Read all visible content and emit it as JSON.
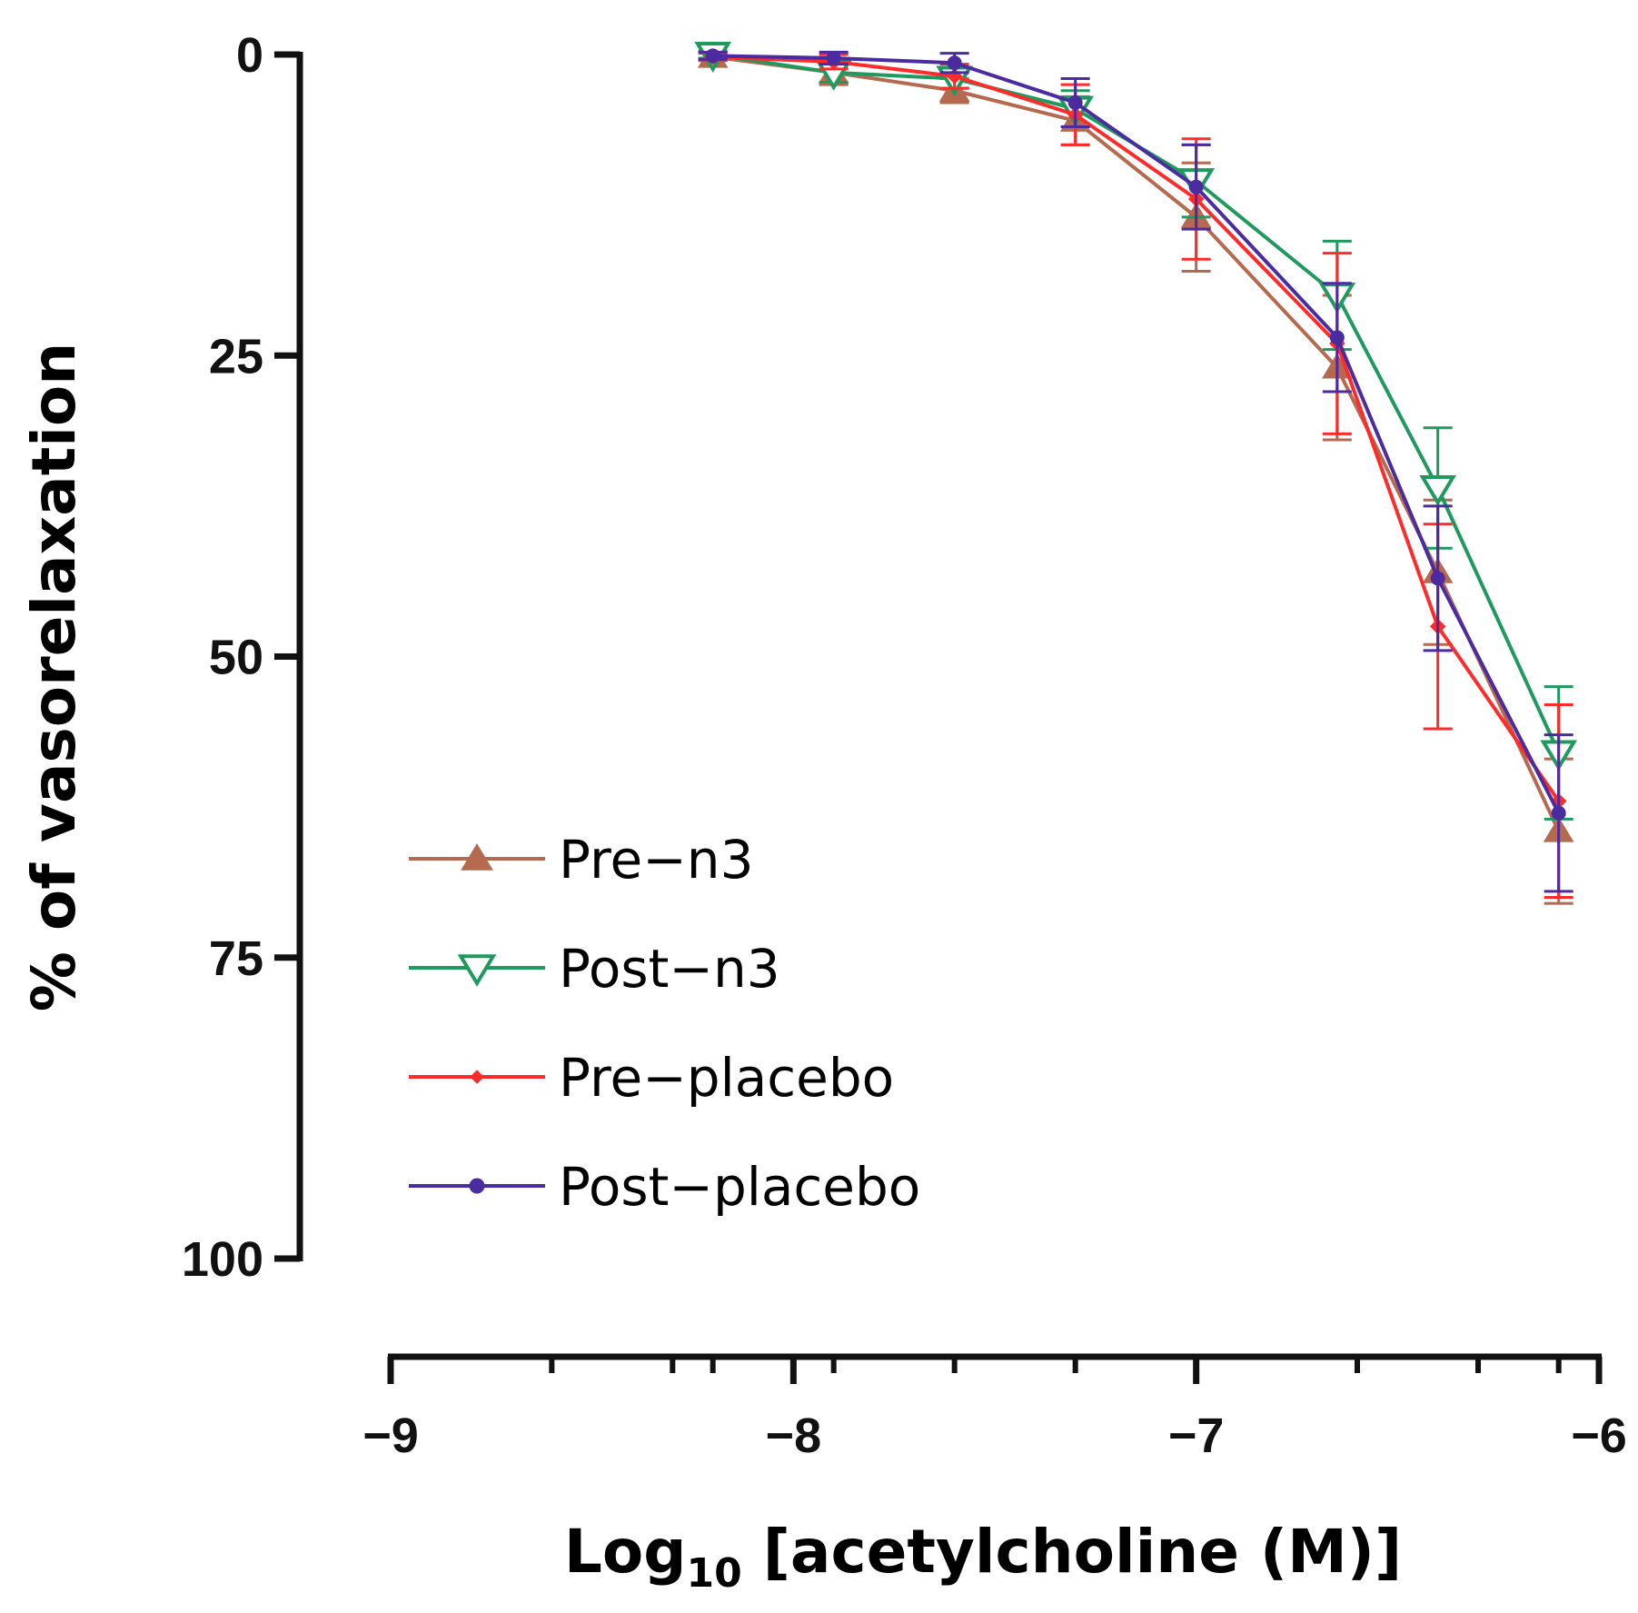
{
  "chart_data": {
    "type": "line",
    "title": "",
    "xlabel": {
      "prefix": "Log",
      "subscript": "10",
      "suffix": " [acetylcholine (M)]"
    },
    "ylabel": "% of vasorelaxation",
    "xlim": [
      -9,
      -6
    ],
    "ylim": [
      0,
      100
    ],
    "y_inverted": true,
    "grid": false,
    "legend_position": "bottom-left",
    "x_ticks": [
      -9,
      -8,
      -7,
      -6
    ],
    "x_tick_labels": [
      "−9",
      "−8",
      "−7",
      "−6"
    ],
    "x_minor_ticks": [
      -8.6,
      -8.3,
      -8.2,
      -7.9,
      -7.6,
      -7.3,
      -6.6,
      -6.3,
      -6.1
    ],
    "y_ticks": [
      0,
      25,
      50,
      75,
      100
    ],
    "y_tick_labels": [
      "0",
      "25",
      "50",
      "75",
      "100"
    ],
    "x": [
      -8.2,
      -7.9,
      -7.6,
      -7.3,
      -7.0,
      -6.65,
      -6.4,
      -6.1
    ],
    "series": [
      {
        "name": "Pre−n3",
        "marker": "triangle-up",
        "color": "#b5694f",
        "values": [
          0.2,
          1.5,
          3.0,
          5.5,
          13.5,
          26.0,
          43.0,
          64.5
        ],
        "errors": [
          0.3,
          1.0,
          1.0,
          2.0,
          4.5,
          6.0,
          6.0,
          6.0
        ]
      },
      {
        "name": "Post−n3",
        "marker": "triangle-down-open",
        "color": "#1e9a5e",
        "values": [
          0.0,
          1.5,
          2.0,
          4.5,
          10.5,
          20.0,
          36.0,
          58.0
        ],
        "errors": [
          0.3,
          0.8,
          0.8,
          1.5,
          3.0,
          4.5,
          5.0,
          5.5
        ]
      },
      {
        "name": "Pre−placebo",
        "marker": "small-diamond",
        "color": "#ff2a2a",
        "values": [
          0.2,
          0.6,
          1.8,
          5.0,
          12.0,
          24.0,
          47.5,
          62.0
        ],
        "errors": [
          0.3,
          0.6,
          1.0,
          2.5,
          5.0,
          7.5,
          8.5,
          8.0
        ]
      },
      {
        "name": "Post−placebo",
        "marker": "dot",
        "color": "#4a2ba0",
        "values": [
          0.1,
          0.3,
          0.7,
          4.0,
          11.0,
          23.5,
          43.5,
          63.0
        ],
        "errors": [
          0.3,
          0.5,
          0.8,
          2.0,
          3.5,
          4.5,
          6.0,
          6.5
        ]
      }
    ]
  }
}
